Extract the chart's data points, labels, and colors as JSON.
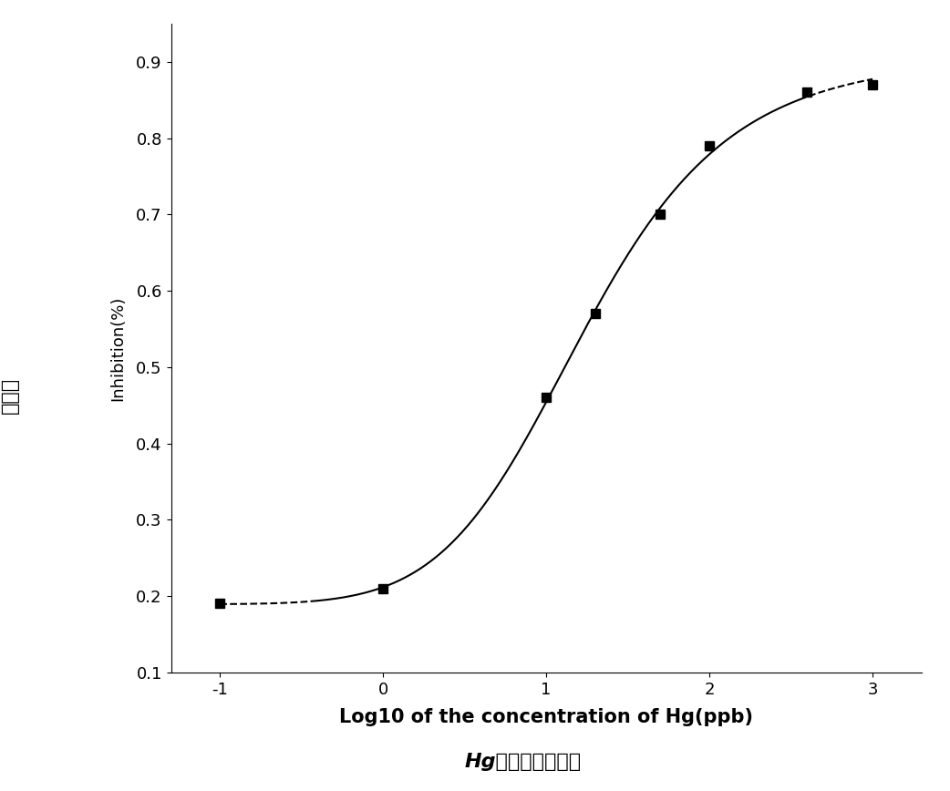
{
  "x_data": [
    -1,
    0,
    1,
    1.3,
    1.7,
    2.0,
    2.6,
    3.0
  ],
  "y_data": [
    0.19,
    0.21,
    0.46,
    0.57,
    0.7,
    0.79,
    0.86,
    0.87
  ],
  "xlabel": "Log10 of the concentration of Hg(ppb)",
  "ylabel": "Inhibition(%)",
  "xlim": [
    -1.3,
    3.3
  ],
  "ylim": [
    0.1,
    0.95
  ],
  "xticks": [
    -1,
    0,
    1,
    2,
    3
  ],
  "yticks": [
    0.1,
    0.2,
    0.3,
    0.4,
    0.5,
    0.6,
    0.7,
    0.8,
    0.9
  ],
  "marker_color": "black",
  "line_color": "black",
  "background_color": "#ffffff",
  "marker_size": 7,
  "line_width": 1.5,
  "xlabel_fontsize": 15,
  "ylabel_fontsize": 13,
  "tick_fontsize": 13,
  "dash_low": -0.4,
  "dash_high": 2.55
}
